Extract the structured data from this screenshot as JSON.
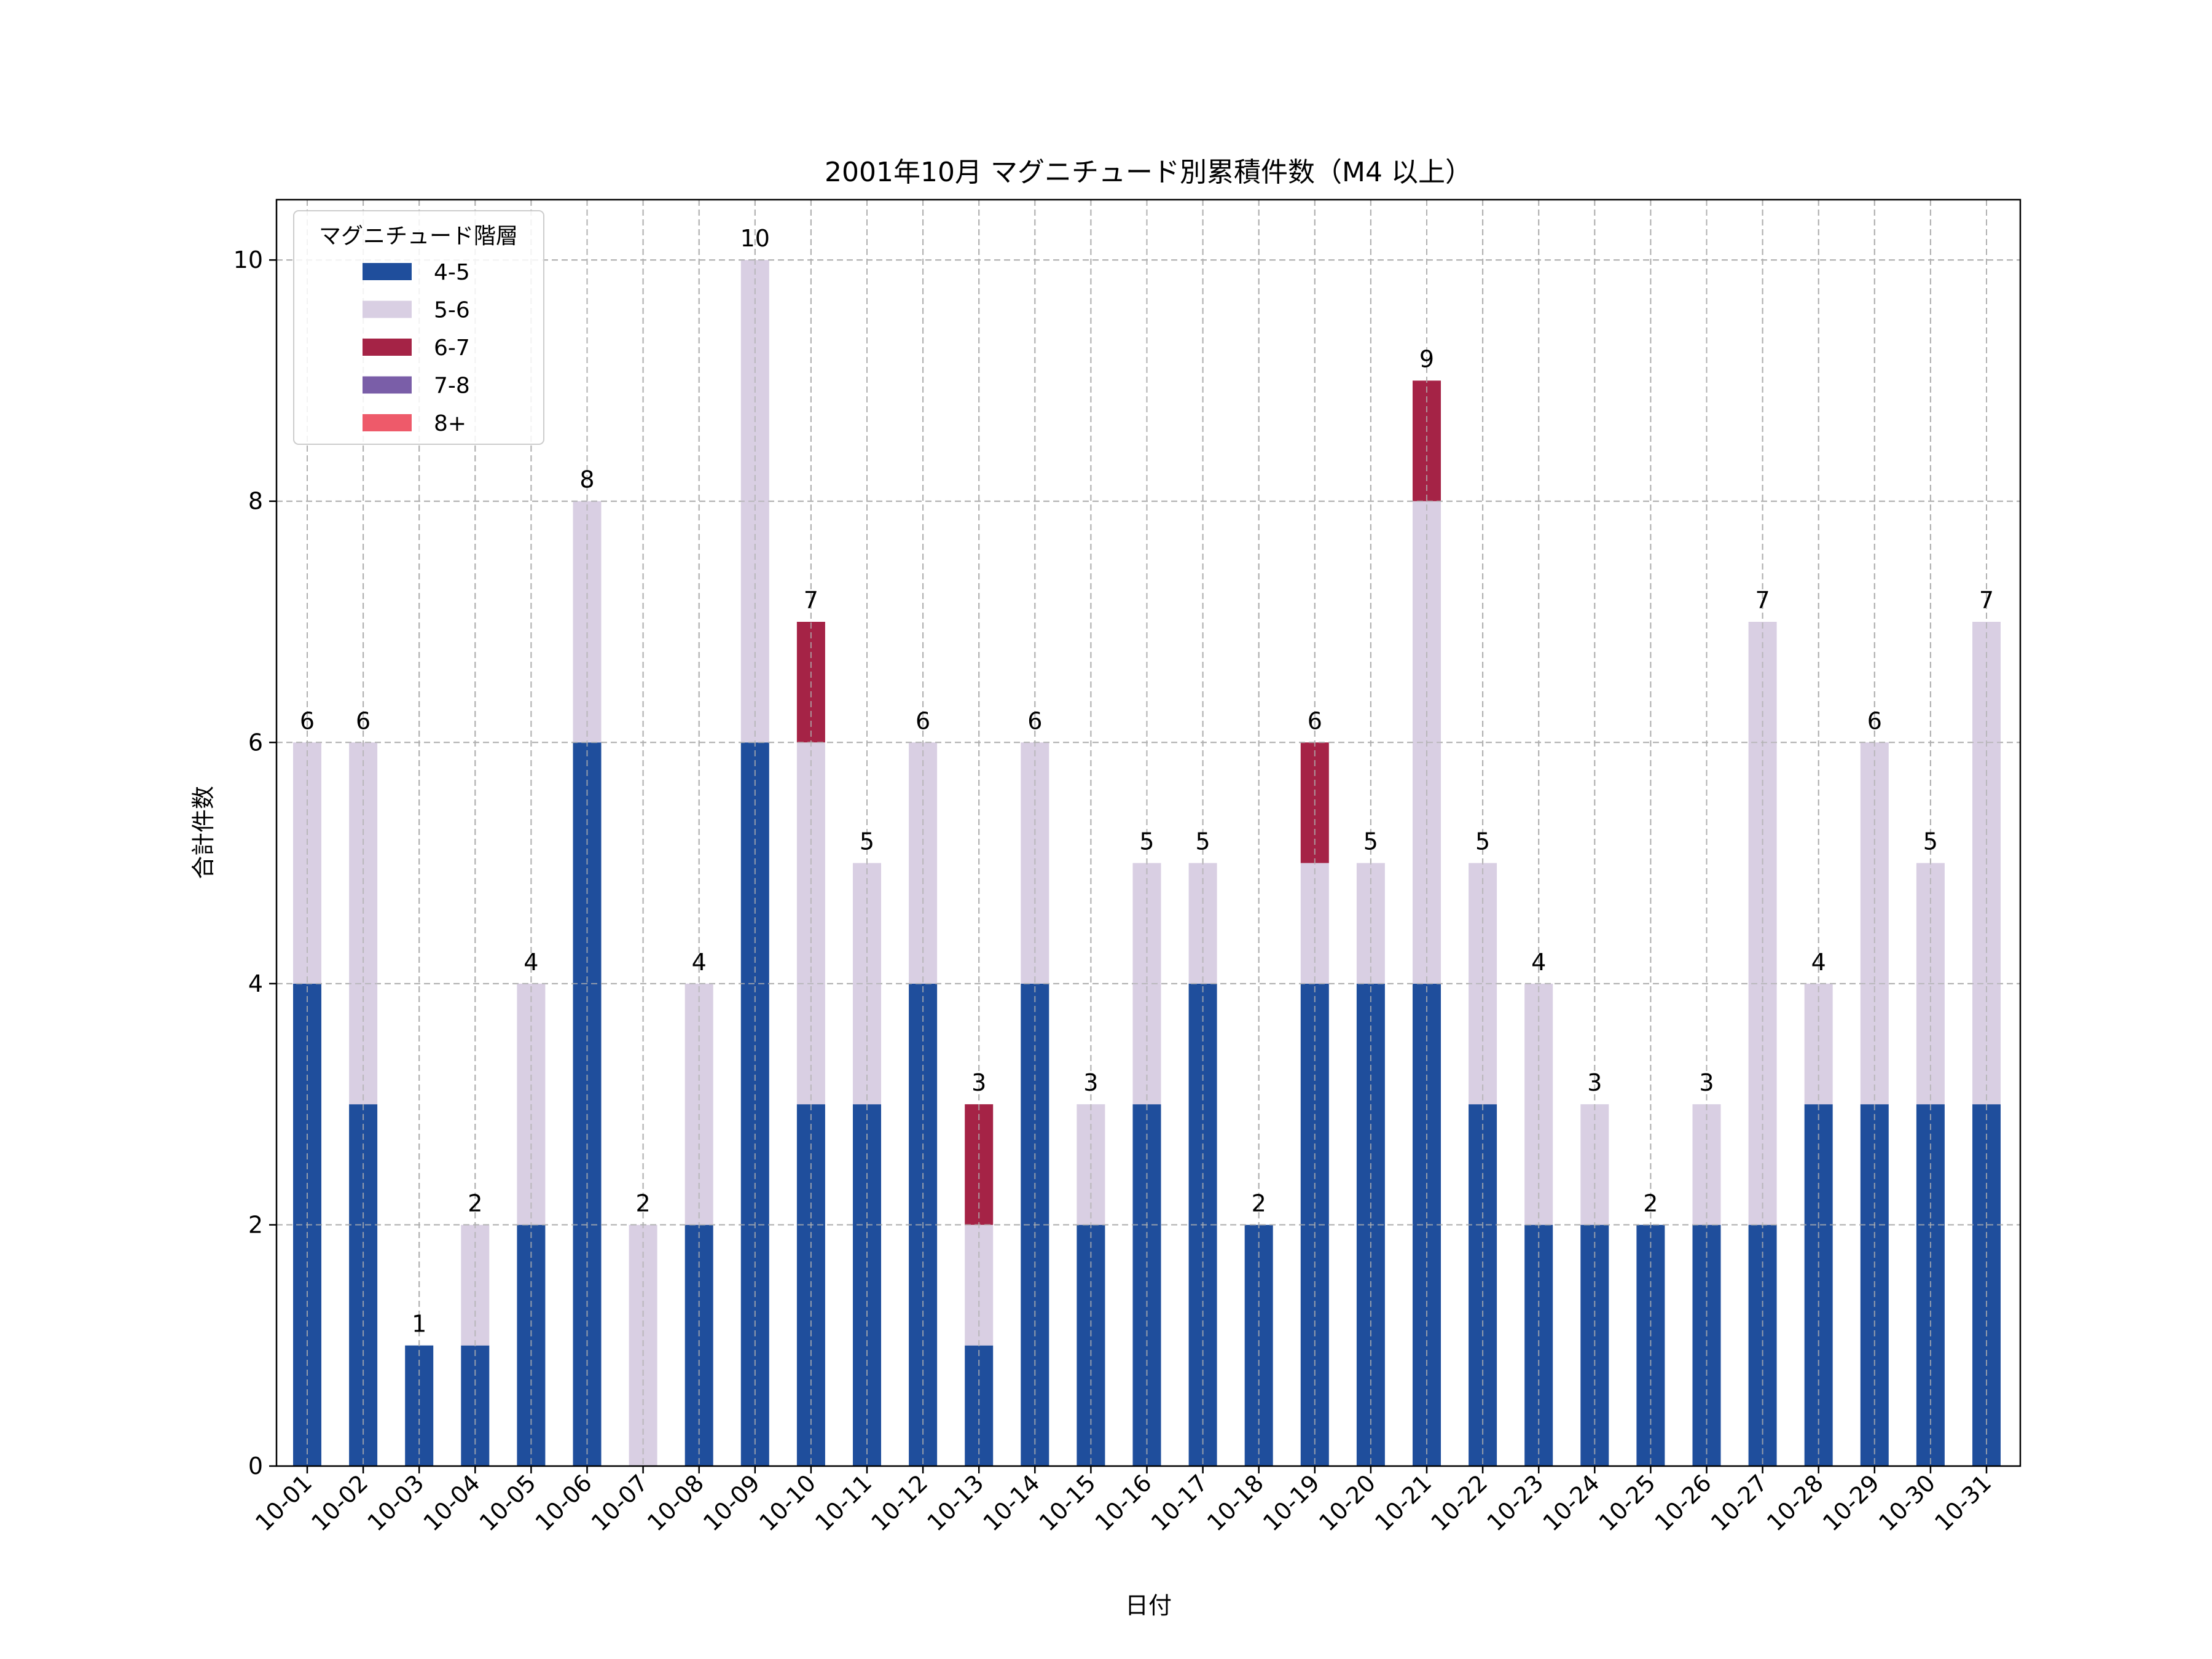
{
  "chart_data": {
    "type": "bar",
    "stacked": true,
    "title": "2001年10月 マグニチュード別累積件数（M4 以上）",
    "xlabel": "日付",
    "ylabel": "合計件数",
    "ylim": [
      0,
      10.5
    ],
    "yticks": [
      0,
      2,
      4,
      6,
      8,
      10
    ],
    "grid": true,
    "legend_position": "top-left",
    "legend_title": "マグニチュード階層",
    "categories": [
      "10-01",
      "10-02",
      "10-03",
      "10-04",
      "10-05",
      "10-06",
      "10-07",
      "10-08",
      "10-09",
      "10-10",
      "10-11",
      "10-12",
      "10-13",
      "10-14",
      "10-15",
      "10-16",
      "10-17",
      "10-18",
      "10-19",
      "10-20",
      "10-21",
      "10-22",
      "10-23",
      "10-24",
      "10-25",
      "10-26",
      "10-27",
      "10-28",
      "10-29",
      "10-30",
      "10-31"
    ],
    "series": [
      {
        "name": "4-5",
        "color": "#1f4e9c",
        "values": [
          4,
          3,
          1,
          1,
          2,
          6,
          0,
          2,
          6,
          3,
          3,
          4,
          1,
          4,
          2,
          3,
          4,
          2,
          4,
          4,
          4,
          3,
          2,
          2,
          2,
          2,
          2,
          3,
          3,
          3,
          3
        ]
      },
      {
        "name": "5-6",
        "color": "#d9cfe3",
        "values": [
          2,
          3,
          0,
          1,
          2,
          2,
          2,
          2,
          4,
          3,
          2,
          2,
          1,
          2,
          1,
          2,
          1,
          0,
          1,
          1,
          4,
          2,
          2,
          1,
          0,
          1,
          5,
          1,
          3,
          2,
          4
        ]
      },
      {
        "name": "6-7",
        "color": "#a52346",
        "values": [
          0,
          0,
          0,
          0,
          0,
          0,
          0,
          0,
          0,
          1,
          0,
          0,
          1,
          0,
          0,
          0,
          0,
          0,
          1,
          0,
          1,
          0,
          0,
          0,
          0,
          0,
          0,
          0,
          0,
          0,
          0
        ]
      },
      {
        "name": "7-8",
        "color": "#7a5ea8",
        "values": [
          0,
          0,
          0,
          0,
          0,
          0,
          0,
          0,
          0,
          0,
          0,
          0,
          0,
          0,
          0,
          0,
          0,
          0,
          0,
          0,
          0,
          0,
          0,
          0,
          0,
          0,
          0,
          0,
          0,
          0,
          0
        ]
      },
      {
        "name": "8+",
        "color": "#ee5a6a",
        "values": [
          0,
          0,
          0,
          0,
          0,
          0,
          0,
          0,
          0,
          0,
          0,
          0,
          0,
          0,
          0,
          0,
          0,
          0,
          0,
          0,
          0,
          0,
          0,
          0,
          0,
          0,
          0,
          0,
          0,
          0,
          0
        ]
      }
    ],
    "totals": [
      6,
      6,
      1,
      2,
      4,
      8,
      2,
      4,
      10,
      7,
      5,
      6,
      3,
      6,
      3,
      5,
      5,
      2,
      6,
      5,
      9,
      5,
      4,
      3,
      2,
      3,
      7,
      4,
      6,
      5,
      7
    ]
  }
}
